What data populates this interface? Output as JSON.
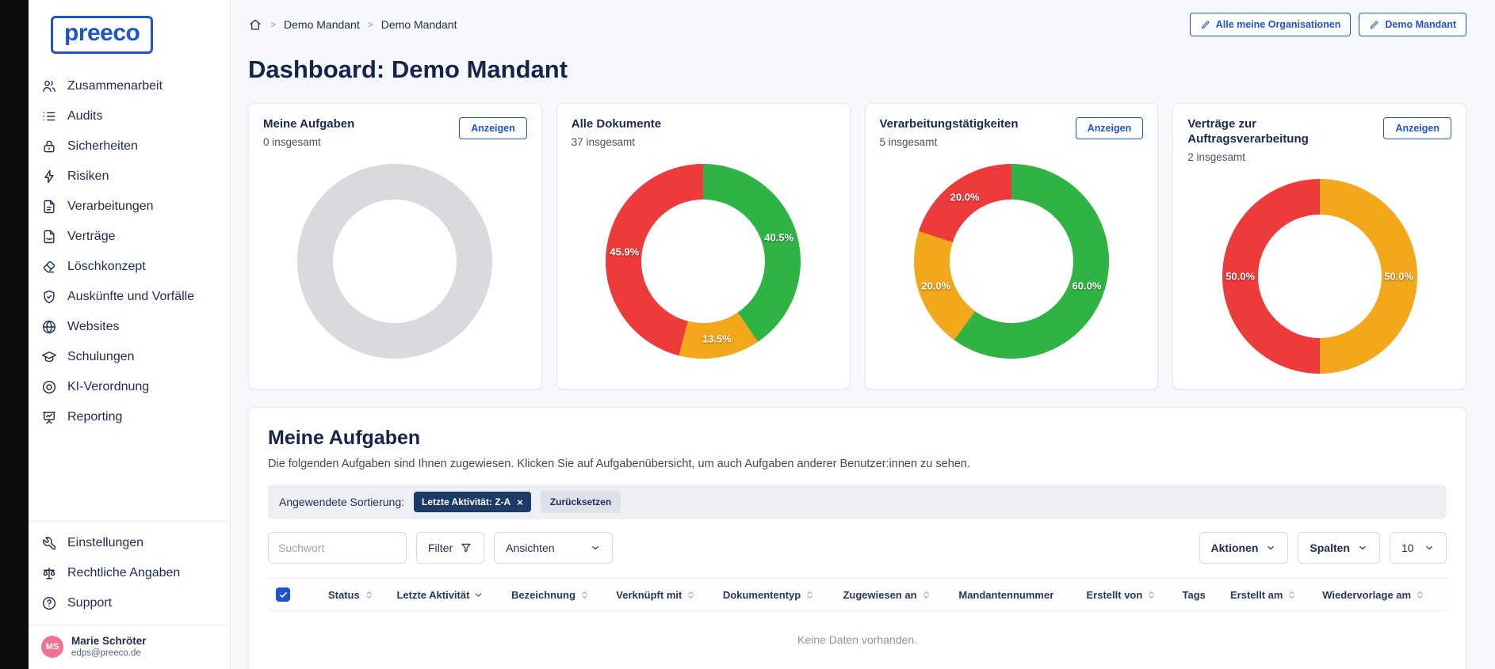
{
  "colors": {
    "accent_blue": "#1e56c8",
    "navy_text": "#1d2b4f",
    "chip_navy": "#1c3a66",
    "donut_green": "#2fb344",
    "donut_red": "#ee3a3a",
    "donut_orange": "#f3a71b",
    "donut_gray": "#d9dadd",
    "avatar_pink": "#f27294"
  },
  "sidebar": {
    "logo": "preeco",
    "nav": [
      {
        "label": "Zusammenarbeit",
        "icon": "users-icon"
      },
      {
        "label": "Audits",
        "icon": "checklist-icon"
      },
      {
        "label": "Sicherheiten",
        "icon": "lock-icon"
      },
      {
        "label": "Risiken",
        "icon": "bolt-icon"
      },
      {
        "label": "Verarbeitungen",
        "icon": "file-text-icon"
      },
      {
        "label": "Verträge",
        "icon": "file-signature-icon"
      },
      {
        "label": "Löschkonzept",
        "icon": "eraser-icon"
      },
      {
        "label": "Auskünfte und Vorfälle",
        "icon": "shield-check-icon"
      },
      {
        "label": "Websites",
        "icon": "globe-icon"
      },
      {
        "label": "Schulungen",
        "icon": "school-icon"
      },
      {
        "label": "KI-Verordnung",
        "icon": "target-icon"
      },
      {
        "label": "Reporting",
        "icon": "presentation-icon"
      }
    ],
    "secondary": [
      {
        "label": "Einstellungen",
        "icon": "tool-icon"
      },
      {
        "label": "Rechtliche Angaben",
        "icon": "scale-icon"
      },
      {
        "label": "Support",
        "icon": "help-icon"
      }
    ],
    "user": {
      "initials": "MS",
      "name": "Marie Schröter",
      "email": "edps@preeco.de"
    }
  },
  "header": {
    "breadcrumb": [
      "Demo Mandant",
      "Demo Mandant"
    ],
    "buttons": [
      {
        "label": "Alle meine Organisationen"
      },
      {
        "label": "Demo Mandant"
      }
    ],
    "title": "Dashboard: Demo Mandant"
  },
  "cards": [
    {
      "title": "Meine Aufgaben",
      "count": "0 insgesamt",
      "action": "Anzeigen",
      "chart": {
        "type": "donut",
        "segments": [
          {
            "pct": 100,
            "color": "#d9dadd",
            "label": ""
          }
        ]
      }
    },
    {
      "title": "Alle Dokumente",
      "count": "37 insgesamt",
      "action": null,
      "chart": {
        "type": "donut",
        "segments": [
          {
            "pct": 40.5,
            "color": "#2fb344",
            "label": "40.5%"
          },
          {
            "pct": 13.5,
            "color": "#f3a71b",
            "label": "13.5%"
          },
          {
            "pct": 45.9,
            "color": "#ee3a3a",
            "label": "45.9%"
          }
        ]
      }
    },
    {
      "title": "Verarbeitungstätigkeiten",
      "count": "5 insgesamt",
      "action": "Anzeigen",
      "chart": {
        "type": "donut",
        "segments": [
          {
            "pct": 60.0,
            "color": "#2fb344",
            "label": "60.0%"
          },
          {
            "pct": 20.0,
            "color": "#f3a71b",
            "label": "20.0%"
          },
          {
            "pct": 20.0,
            "color": "#ee3a3a",
            "label": "20.0%"
          }
        ]
      }
    },
    {
      "title": "Verträge zur Auftragsverarbeitung",
      "count": "2 insgesamt",
      "action": "Anzeigen",
      "chart": {
        "type": "donut",
        "segments": [
          {
            "pct": 50.0,
            "color": "#f3a71b",
            "label": "50.0%"
          },
          {
            "pct": 50.0,
            "color": "#ee3a3a",
            "label": "50.0%"
          }
        ]
      }
    }
  ],
  "tasks": {
    "heading": "Meine Aufgaben",
    "description": "Die folgenden Aufgaben sind Ihnen zugewiesen. Klicken Sie auf Aufgabenübersicht, um auch Aufgaben anderer Benutzer:innen zu sehen.",
    "sort_label": "Angewendete Sortierung:",
    "sort_chip": "Letzte Aktivität: Z-A",
    "reset_label": "Zurücksetzen",
    "search_placeholder": "Suchwort",
    "filter_label": "Filter",
    "views_label": "Ansichten",
    "actions_label": "Aktionen",
    "columns_label": "Spalten",
    "page_size": "10",
    "table": {
      "columns": [
        {
          "label": "Status",
          "sort": "both"
        },
        {
          "label": "Letzte Aktivität",
          "sort": "desc"
        },
        {
          "label": "Bezeichnung",
          "sort": "both"
        },
        {
          "label": "Verknüpft mit",
          "sort": "both"
        },
        {
          "label": "Dokumententyp",
          "sort": "both"
        },
        {
          "label": "Zugewiesen an",
          "sort": "both"
        },
        {
          "label": "Mandantennummer",
          "sort": "none"
        },
        {
          "label": "Erstellt von",
          "sort": "both"
        },
        {
          "label": "Tags",
          "sort": "none"
        },
        {
          "label": "Erstellt am",
          "sort": "both"
        },
        {
          "label": "Wiedervorlage am",
          "sort": "both"
        }
      ],
      "empty": "Keine Daten vorhanden."
    }
  }
}
